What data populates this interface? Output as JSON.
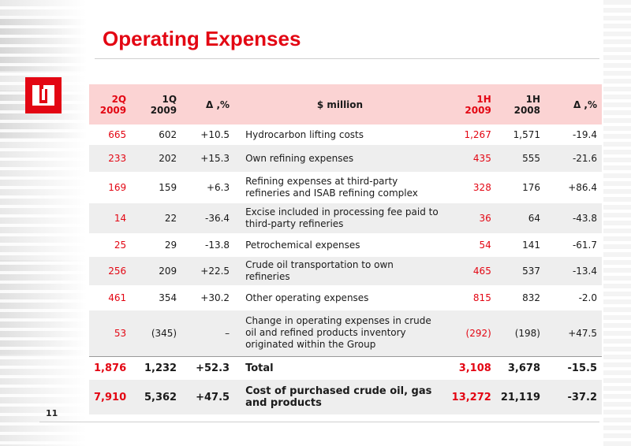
{
  "slide": {
    "title": "Operating Expenses",
    "page_number": "11",
    "logo_label": "LUKOIL logo"
  },
  "table": {
    "headers": {
      "q2": [
        "2Q",
        "2009"
      ],
      "q1": [
        "1Q",
        "2009"
      ],
      "delta_q": "Δ ,%",
      "desc": "$ million",
      "h1_2009": [
        "1H",
        "2009"
      ],
      "h1_2008": [
        "1H",
        "2008"
      ],
      "delta_h": "Δ ,%"
    },
    "rows": [
      {
        "q2": "665",
        "q1": "602",
        "dq": "+10.5",
        "desc": "Hydrocarbon lifting costs",
        "h09": "1,267",
        "h08": "1,571",
        "dh": "-19.4"
      },
      {
        "q2": "233",
        "q1": "202",
        "dq": "+15.3",
        "desc": "Own refining expenses",
        "h09": "435",
        "h08": "555",
        "dh": "-21.6"
      },
      {
        "q2": "169",
        "q1": "159",
        "dq": "+6.3",
        "desc": "Refining expenses at third-party refineries and ISAB refining complex",
        "h09": "328",
        "h08": "176",
        "dh": "+86.4"
      },
      {
        "q2": "14",
        "q1": "22",
        "dq": "-36.4",
        "desc": "Excise included in processing fee paid to third-party refineries",
        "h09": "36",
        "h08": "64",
        "dh": "-43.8"
      },
      {
        "q2": "25",
        "q1": "29",
        "dq": "-13.8",
        "desc": "Petrochemical expenses",
        "h09": "54",
        "h08": "141",
        "dh": "-61.7"
      },
      {
        "q2": "256",
        "q1": "209",
        "dq": "+22.5",
        "desc": "Crude oil transportation to own refineries",
        "h09": "465",
        "h08": "537",
        "dh": "-13.4"
      },
      {
        "q2": "461",
        "q1": "354",
        "dq": "+30.2",
        "desc": "Other operating expenses",
        "h09": "815",
        "h08": "832",
        "dh": "-2.0"
      },
      {
        "q2": "53",
        "q1": "(345)",
        "dq": "–",
        "desc": "Change in operating expenses in crude oil and refined products inventory originated within the Group",
        "h09": "(292)",
        "h08": "(198)",
        "dh": "+47.5"
      }
    ],
    "total": {
      "q2": "1,876",
      "q1": "1,232",
      "dq": "+52.3",
      "desc": "Total",
      "h09": "3,108",
      "h08": "3,678",
      "dh": "-15.5"
    },
    "purchased": {
      "q2": "7,910",
      "q1": "5,362",
      "dq": "+47.5",
      "desc": "Cost of purchased crude oil, gas and products",
      "h09": "13,272",
      "h08": "21,119",
      "dh": "-37.2"
    }
  },
  "colors": {
    "accent_red": "#e30613",
    "header_bg": "#fbd3d3",
    "row_shade": "#eeeeee"
  }
}
